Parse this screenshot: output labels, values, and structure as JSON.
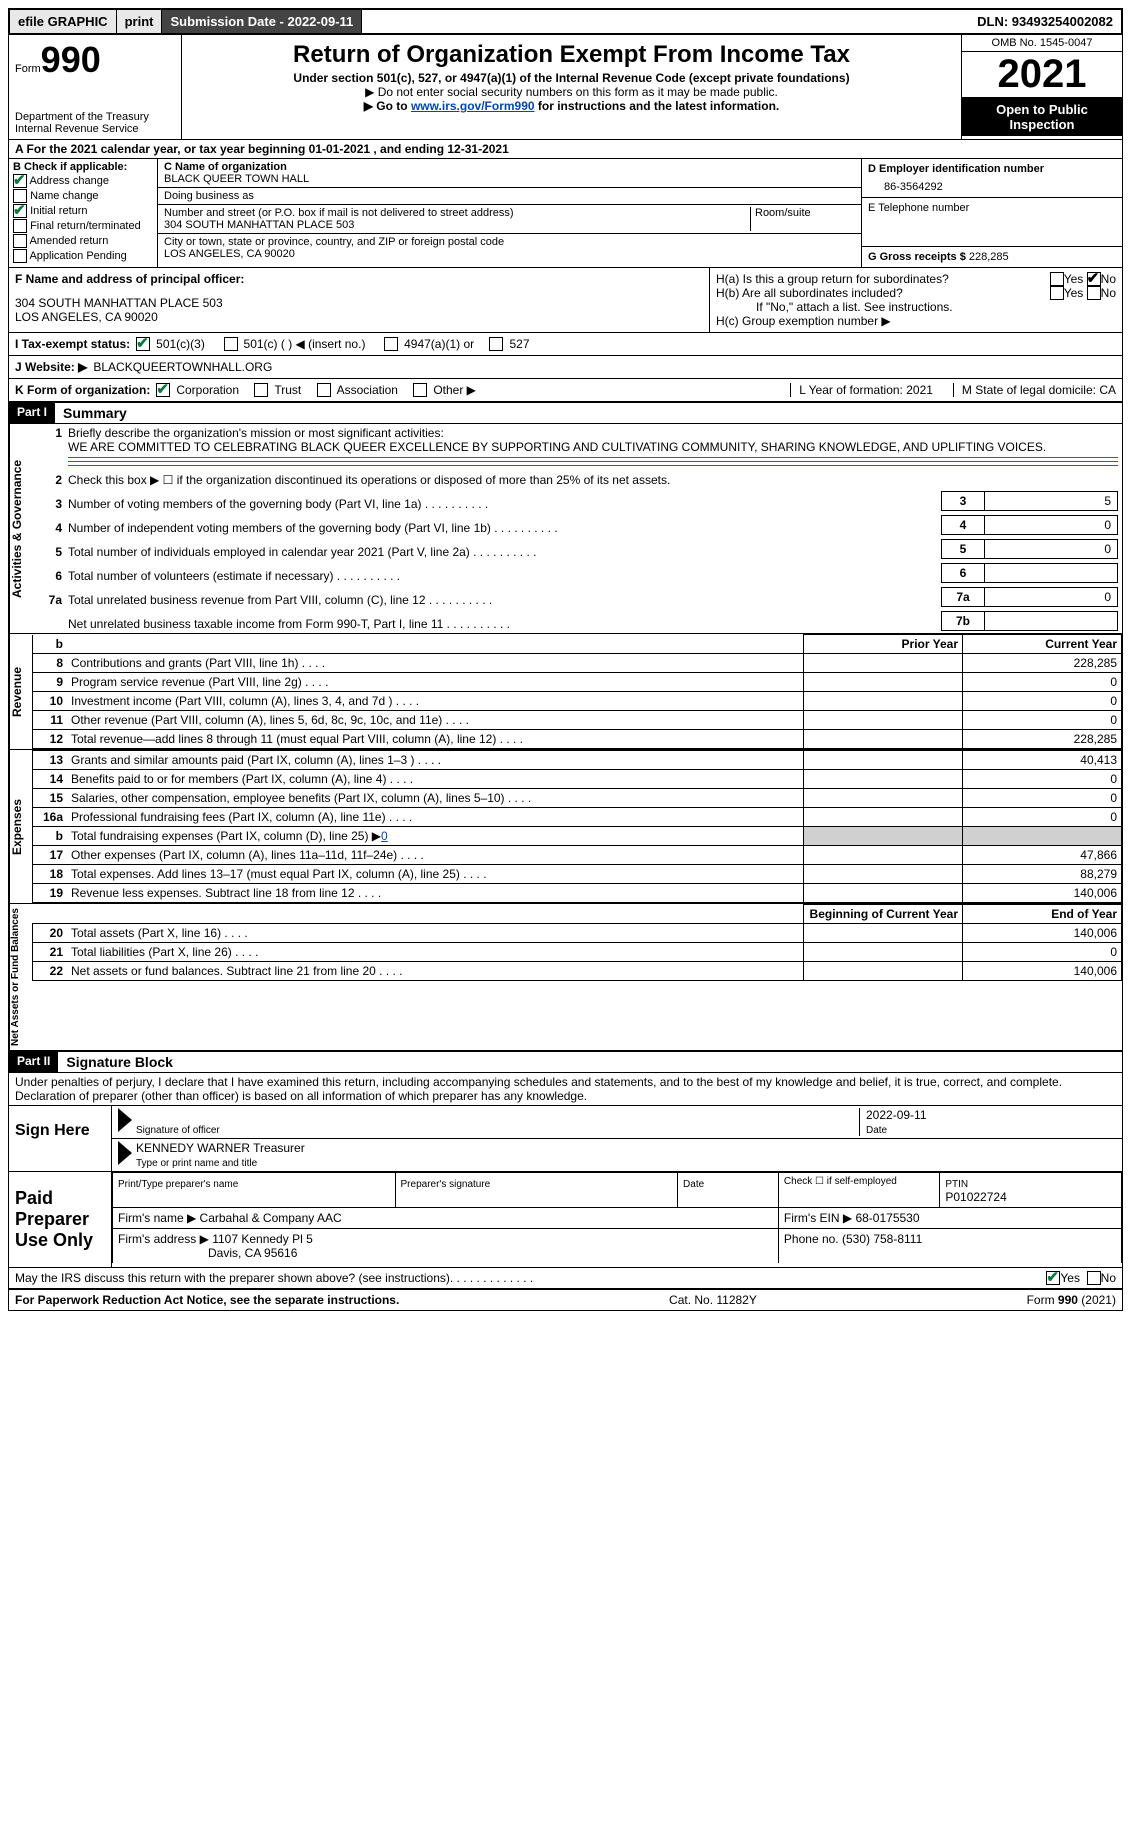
{
  "topbar": {
    "efile": "efile GRAPHIC",
    "print": "print",
    "submission_label": "Submission Date - 2022-09-11",
    "dln_label": "DLN: 93493254002082"
  },
  "header": {
    "form_label": "Form",
    "form_number": "990",
    "dept1": "Department of the Treasury",
    "dept2": "Internal Revenue Service",
    "title": "Return of Organization Exempt From Income Tax",
    "subtitle": "Under section 501(c), 527, or 4947(a)(1) of the Internal Revenue Code (except private foundations)",
    "note1": "▶ Do not enter social security numbers on this form as it may be made public.",
    "note2a": "▶ Go to ",
    "note2_link": "www.irs.gov/Form990",
    "note2b": " for instructions and the latest information.",
    "omb": "OMB No. 1545-0047",
    "year": "2021",
    "open": "Open to Public Inspection"
  },
  "row_a": "A For the 2021 calendar year, or tax year beginning 01-01-2021   , and ending 12-31-2021",
  "section_b": {
    "title": "B Check if applicable:",
    "items": [
      "Address change",
      "Name change",
      "Initial return",
      "Final return/terminated",
      "Amended return",
      "Application Pending"
    ],
    "checked": [
      true,
      false,
      true,
      false,
      false,
      false
    ]
  },
  "section_c": {
    "name_label": "C Name of organization",
    "name": "BLACK QUEER TOWN HALL",
    "dba_label": "Doing business as",
    "addr_label": "Number and street (or P.O. box if mail is not delivered to street address)",
    "room_label": "Room/suite",
    "addr": "304 SOUTH MANHATTAN PLACE 503",
    "city_label": "City or town, state or province, country, and ZIP or foreign postal code",
    "city": "LOS ANGELES, CA  90020"
  },
  "section_d": {
    "ein_label": "D Employer identification number",
    "ein": "86-3564292",
    "tel_label": "E Telephone number",
    "gross_label": "G Gross receipts $",
    "gross": "228,285"
  },
  "section_f": {
    "label": "F Name and address of principal officer:",
    "addr1": "304 SOUTH MANHATTAN PLACE 503",
    "addr2": "LOS ANGELES, CA  90020"
  },
  "section_h": {
    "ha": "H(a)  Is this a group return for subordinates?",
    "hb": "H(b)  Are all subordinates included?",
    "hb_note": "If \"No,\" attach a list. See instructions.",
    "hc": "H(c)  Group exemption number ▶",
    "yes": "Yes",
    "no": "No"
  },
  "row_i": {
    "label": "I   Tax-exempt status:",
    "opts": [
      "501(c)(3)",
      "501(c) (   ) ◀ (insert no.)",
      "4947(a)(1) or",
      "527"
    ]
  },
  "row_j": {
    "label": "J   Website: ▶",
    "val": "BLACKQUEERTOWNHALL.ORG"
  },
  "row_k": {
    "label": "K Form of organization:",
    "opts": [
      "Corporation",
      "Trust",
      "Association",
      "Other ▶"
    ],
    "l_label": "L Year of formation: 2021",
    "m_label": "M State of legal domicile: CA"
  },
  "part1": {
    "header": "Part I",
    "title": "Summary",
    "line1_label": "Briefly describe the organization's mission or most significant activities:",
    "line1_text": "WE ARE COMMITTED TO CELEBRATING BLACK QUEER EXCELLENCE BY SUPPORTING AND CULTIVATING COMMUNITY, SHARING KNOWLEDGE, AND UPLIFTING VOICES.",
    "line2": "Check this box ▶ ☐ if the organization discontinued its operations or disposed of more than 25% of its net assets.",
    "lines_ag": [
      {
        "n": "3",
        "d": "Number of voting members of the governing body (Part VI, line 1a)",
        "box": "3",
        "v": "5"
      },
      {
        "n": "4",
        "d": "Number of independent voting members of the governing body (Part VI, line 1b)",
        "box": "4",
        "v": "0"
      },
      {
        "n": "5",
        "d": "Total number of individuals employed in calendar year 2021 (Part V, line 2a)",
        "box": "5",
        "v": "0"
      },
      {
        "n": "6",
        "d": "Total number of volunteers (estimate if necessary)",
        "box": "6",
        "v": ""
      },
      {
        "n": "7a",
        "d": "Total unrelated business revenue from Part VIII, column (C), line 12",
        "box": "7a",
        "v": "0"
      },
      {
        "n": "",
        "d": "Net unrelated business taxable income from Form 990-T, Part I, line 11",
        "box": "7b",
        "v": ""
      }
    ],
    "prior_label": "Prior Year",
    "current_label": "Current Year",
    "revenue": [
      {
        "n": "8",
        "d": "Contributions and grants (Part VIII, line 1h)",
        "p": "",
        "c": "228,285"
      },
      {
        "n": "9",
        "d": "Program service revenue (Part VIII, line 2g)",
        "p": "",
        "c": "0"
      },
      {
        "n": "10",
        "d": "Investment income (Part VIII, column (A), lines 3, 4, and 7d )",
        "p": "",
        "c": "0"
      },
      {
        "n": "11",
        "d": "Other revenue (Part VIII, column (A), lines 5, 6d, 8c, 9c, 10c, and 11e)",
        "p": "",
        "c": "0"
      },
      {
        "n": "12",
        "d": "Total revenue—add lines 8 through 11 (must equal Part VIII, column (A), line 12)",
        "p": "",
        "c": "228,285"
      }
    ],
    "expenses": [
      {
        "n": "13",
        "d": "Grants and similar amounts paid (Part IX, column (A), lines 1–3 )",
        "p": "",
        "c": "40,413"
      },
      {
        "n": "14",
        "d": "Benefits paid to or for members (Part IX, column (A), line 4)",
        "p": "",
        "c": "0"
      },
      {
        "n": "15",
        "d": "Salaries, other compensation, employee benefits (Part IX, column (A), lines 5–10)",
        "p": "",
        "c": "0"
      },
      {
        "n": "16a",
        "d": "Professional fundraising fees (Part IX, column (A), line 11e)",
        "p": "",
        "c": "0"
      },
      {
        "n": "b",
        "d": "Total fundraising expenses (Part IX, column (D), line 25) ▶",
        "p": "shade",
        "c": "shade",
        "extra": "0"
      },
      {
        "n": "17",
        "d": "Other expenses (Part IX, column (A), lines 11a–11d, 11f–24e)",
        "p": "",
        "c": "47,866"
      },
      {
        "n": "18",
        "d": "Total expenses. Add lines 13–17 (must equal Part IX, column (A), line 25)",
        "p": "",
        "c": "88,279"
      },
      {
        "n": "19",
        "d": "Revenue less expenses. Subtract line 18 from line 12",
        "p": "",
        "c": "140,006"
      }
    ],
    "begin_label": "Beginning of Current Year",
    "end_label": "End of Year",
    "netassets": [
      {
        "n": "20",
        "d": "Total assets (Part X, line 16)",
        "p": "",
        "c": "140,006"
      },
      {
        "n": "21",
        "d": "Total liabilities (Part X, line 26)",
        "p": "",
        "c": "0"
      },
      {
        "n": "22",
        "d": "Net assets or fund balances. Subtract line 21 from line 20",
        "p": "",
        "c": "140,006"
      }
    ],
    "vtab_ag": "Activities & Governance",
    "vtab_rev": "Revenue",
    "vtab_exp": "Expenses",
    "vtab_net": "Net Assets or Fund Balances"
  },
  "part2": {
    "header": "Part II",
    "title": "Signature Block",
    "declaration": "Under penalties of perjury, I declare that I have examined this return, including accompanying schedules and statements, and to the best of my knowledge and belief, it is true, correct, and complete. Declaration of preparer (other than officer) is based on all information of which preparer has any knowledge.",
    "sign_here": "Sign Here",
    "sig_officer": "Signature of officer",
    "sig_date": "2022-09-11",
    "date_label": "Date",
    "officer_name": "KENNEDY WARNER  Treasurer",
    "type_name": "Type or print name and title",
    "paid_prep": "Paid Preparer Use Only",
    "prep_name_label": "Print/Type preparer's name",
    "prep_sig_label": "Preparer's signature",
    "check_if": "Check ☐ if self-employed",
    "ptin_label": "PTIN",
    "ptin": "P01022724",
    "firm_name_label": "Firm's name   ▶",
    "firm_name": "Carbahal & Company AAC",
    "firm_ein_label": "Firm's EIN ▶",
    "firm_ein": "68-0175530",
    "firm_addr_label": "Firm's address ▶",
    "firm_addr1": "1107 Kennedy Pl 5",
    "firm_addr2": "Davis, CA  95616",
    "phone_label": "Phone no.",
    "phone": "(530) 758-8111",
    "may_irs": "May the IRS discuss this return with the preparer shown above? (see instructions)",
    "footer_left": "For Paperwork Reduction Act Notice, see the separate instructions.",
    "footer_mid": "Cat. No. 11282Y",
    "footer_right": "Form 990 (2021)"
  }
}
